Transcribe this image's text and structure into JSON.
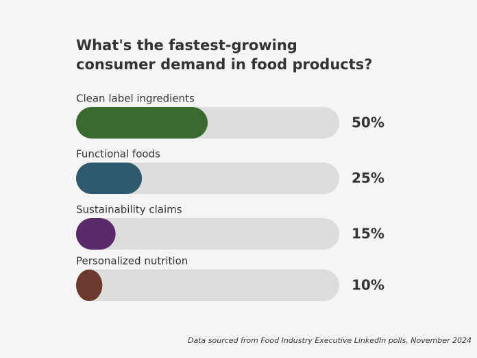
{
  "chart_data": {
    "type": "progress-bar",
    "title": "What's the fastest-growing consumer demand in food products?",
    "categories": [
      "Clean label ingredients",
      "Functional foods",
      "Sustainability claims",
      "Personalized nutrition"
    ],
    "values": [
      50,
      25,
      15,
      10
    ],
    "value_labels": [
      "50%",
      "25%",
      "15%",
      "10%"
    ],
    "colors": [
      "#3a6b2e",
      "#2e5a6b",
      "#5a2a6b",
      "#6b3a2c"
    ],
    "track_color": "#dcdcdc",
    "xlim": [
      0,
      100
    ],
    "note": "Data sourced from Food Industry Executive LinkedIn polls, November 2024"
  }
}
